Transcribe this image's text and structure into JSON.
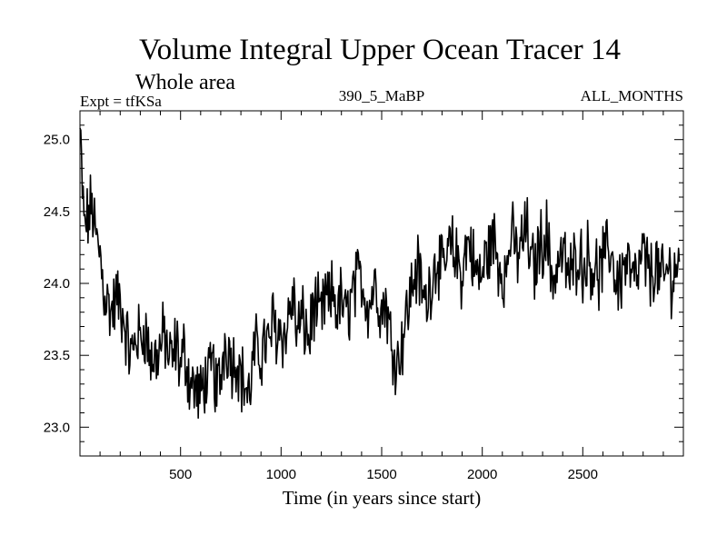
{
  "chart_data": {
    "type": "line",
    "title": "Volume Integral Upper Ocean Tracer 14",
    "subtitle": "Whole area",
    "left_label": "Expt = tfKSa",
    "center_label": "390_5_MaBP",
    "right_label": "ALL_MONTHS",
    "xlabel": "Time (in years since start)",
    "ylabel": "",
    "xlim": [
      0,
      3000
    ],
    "ylim": [
      22.8,
      25.2
    ],
    "x_ticks": [
      500,
      1000,
      1500,
      2000,
      2500
    ],
    "y_ticks": [
      23.0,
      23.5,
      24.0,
      24.5,
      25.0
    ],
    "y_tick_labels": [
      "23.0",
      "23.5",
      "24.0",
      "24.5",
      "25.0"
    ],
    "grid": false,
    "series": [
      {
        "name": "Tracer 14",
        "color": "#000000",
        "x_start": 0,
        "x_step": 20,
        "values": [
          25.05,
          24.4,
          24.45,
          24.55,
          24.3,
          24.2,
          23.95,
          23.85,
          23.8,
          23.9,
          23.85,
          23.75,
          23.55,
          23.5,
          23.65,
          23.6,
          23.7,
          23.55,
          23.45,
          23.5,
          23.55,
          23.65,
          23.5,
          23.45,
          23.6,
          23.4,
          23.55,
          23.35,
          23.3,
          23.25,
          23.2,
          23.35,
          23.3,
          23.45,
          23.25,
          23.35,
          23.6,
          23.55,
          23.45,
          23.5,
          23.35,
          23.3,
          23.2,
          23.45,
          23.55,
          23.5,
          23.6,
          23.55,
          23.75,
          23.65,
          23.7,
          23.6,
          23.8,
          23.9,
          23.65,
          23.75,
          23.7,
          23.6,
          23.85,
          23.8,
          23.75,
          23.9,
          23.85,
          23.95,
          23.8,
          23.9,
          23.75,
          23.85,
          23.95,
          24.0,
          24.05,
          23.9,
          23.85,
          24.0,
          23.95,
          23.8,
          23.9,
          23.65,
          23.55,
          23.45,
          23.6,
          23.75,
          23.9,
          24.05,
          24.1,
          23.95,
          23.85,
          24.0,
          24.1,
          24.2,
          24.05,
          24.15,
          24.25,
          24.2,
          24.15,
          24.05,
          24.25,
          24.3,
          24.1,
          24.05,
          24.05,
          24.2,
          24.25,
          24.3,
          24.15,
          24.1,
          24.05,
          24.35,
          24.25,
          24.2,
          24.3,
          24.4,
          24.15,
          24.1,
          24.25,
          24.3,
          24.35,
          24.1,
          24.05,
          24.15,
          24.2,
          24.1,
          24.05,
          24.15,
          24.25,
          24.1,
          24.2,
          24.15,
          24.1,
          24.05,
          24.15,
          24.2,
          24.25,
          24.05,
          24.0,
          24.1,
          24.15,
          24.05,
          24.0,
          24.1,
          24.2,
          24.1,
          24.05,
          24.15,
          24.05,
          24.0,
          24.1,
          24.05,
          24.1,
          24.15
        ]
      }
    ]
  }
}
